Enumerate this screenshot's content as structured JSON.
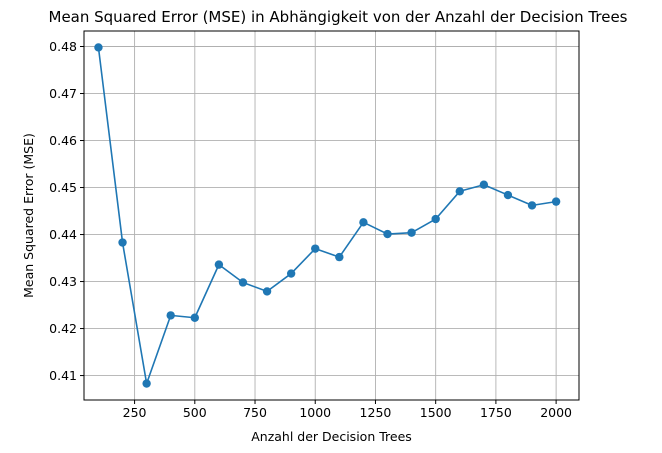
{
  "chart_data": {
    "type": "line",
    "title": "Mean Squared Error (MSE) in Abhängigkeit von der Anzahl der Decision Trees",
    "xlabel": "Anzahl der Decision Trees",
    "ylabel": "Mean Squared Error (MSE)",
    "xlim": [
      40,
      2095
    ],
    "ylim": [
      0.4048,
      0.4833
    ],
    "xticks": [
      250,
      500,
      750,
      1000,
      1250,
      1500,
      1750,
      2000
    ],
    "xtick_labels": [
      "250",
      "500",
      "750",
      "1000",
      "1250",
      "1500",
      "1750",
      "2000"
    ],
    "yticks": [
      0.41,
      0.42,
      0.43,
      0.44,
      0.45,
      0.46,
      0.47,
      0.48
    ],
    "ytick_labels": [
      "0.41",
      "0.42",
      "0.43",
      "0.44",
      "0.45",
      "0.46",
      "0.47",
      "0.48"
    ],
    "grid": true,
    "series": [
      {
        "color": "#1f77b4",
        "marker": "circle",
        "x": [
          100,
          200,
          300,
          400,
          500,
          600,
          700,
          800,
          900,
          1000,
          1100,
          1200,
          1300,
          1400,
          1500,
          1600,
          1700,
          1800,
          1900,
          2000
        ],
        "y": [
          0.4798,
          0.4383,
          0.4083,
          0.4228,
          0.4223,
          0.4336,
          0.4298,
          0.4279,
          0.4317,
          0.437,
          0.4352,
          0.4426,
          0.4401,
          0.4404,
          0.4433,
          0.4492,
          0.4506,
          0.4484,
          0.4462,
          0.447
        ]
      }
    ]
  }
}
